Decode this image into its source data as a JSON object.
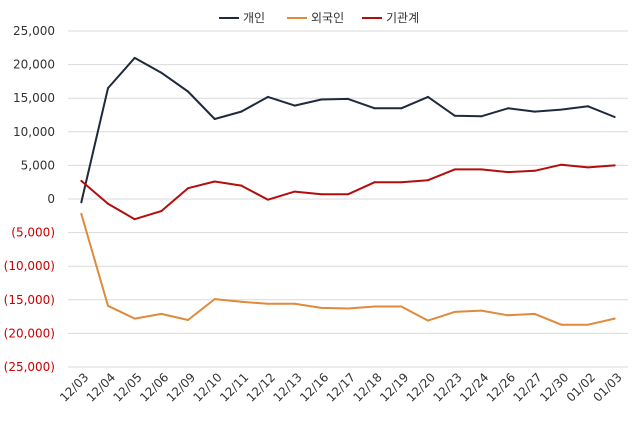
{
  "chart_data": {
    "type": "line",
    "categories": [
      "12/03",
      "12/04",
      "12/05",
      "12/06",
      "12/09",
      "12/10",
      "12/11",
      "12/12",
      "12/13",
      "12/16",
      "12/17",
      "12/18",
      "12/19",
      "12/20",
      "12/23",
      "12/24",
      "12/26",
      "12/27",
      "12/30",
      "01/02",
      "01/03"
    ],
    "series": [
      {
        "name": "개인",
        "color": "#1f2a3c",
        "values": [
          -500,
          16500,
          21000,
          18800,
          16000,
          11900,
          13000,
          15200,
          13900,
          14800,
          14900,
          13500,
          13500,
          15200,
          12400,
          12300,
          13500,
          13000,
          13300,
          13800,
          12200
        ]
      },
      {
        "name": "외국인",
        "color": "#e08a3c",
        "values": [
          -2200,
          -15900,
          -17800,
          -17100,
          -18000,
          -14900,
          -15300,
          -15600,
          -15600,
          -16200,
          -16300,
          -16000,
          -16000,
          -18100,
          -16800,
          -16600,
          -17300,
          -17100,
          -18700,
          -18700,
          -17800
        ]
      },
      {
        "name": "기관계",
        "color": "#b30d0d",
        "values": [
          2700,
          -700,
          -3000,
          -1800,
          1600,
          2600,
          2000,
          -100,
          1100,
          700,
          700,
          2500,
          2500,
          2800,
          4400,
          4400,
          4000,
          4200,
          5100,
          4700,
          5000
        ]
      }
    ],
    "ylim": [
      -25000,
      25000
    ],
    "yticks": [
      25000,
      20000,
      15000,
      10000,
      5000,
      0,
      -5000,
      -10000,
      -15000,
      -20000,
      -25000
    ],
    "ytick_labels": [
      "25,000",
      "20,000",
      "15,000",
      "10,000",
      "5,000",
      "0",
      "(5,000)",
      "(10,000)",
      "(15,000)",
      "(20,000)",
      "(25,000)"
    ],
    "negative_tick_color": "#cc0000",
    "positive_tick_color": "#333333",
    "grid": true,
    "grid_color": "#d9d9d9",
    "legend_position": "top-center"
  }
}
